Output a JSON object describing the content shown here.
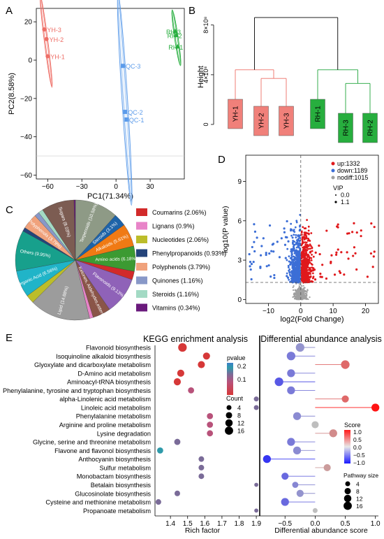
{
  "panel_labels": [
    "A",
    "B",
    "C",
    "D",
    "E"
  ],
  "chart_data": [
    {
      "type": "scatter",
      "panel": "A",
      "xlabel": "PC1(71.34%)",
      "ylabel": "PC2(8.58%)",
      "xlim": [
        -70,
        60
      ],
      "ylim": [
        -62,
        27
      ],
      "xticks": [
        -60,
        -30,
        0,
        30
      ],
      "xtick_labels": [
        "−60",
        "−30",
        "0",
        "30"
      ],
      "yticks": [
        20,
        0,
        -20,
        -40,
        -60
      ],
      "ytick_labels": [
        "20",
        "0",
        "−20",
        "−40",
        "−60"
      ],
      "groups": [
        {
          "color": "#EE6E66",
          "marker": "circle",
          "points": [
            {
              "label": "YH-3",
              "x": -63,
              "y": 16
            },
            {
              "label": "YH-2",
              "x": -61,
              "y": 11
            },
            {
              "label": "YH-1",
              "x": -60,
              "y": 2
            }
          ]
        },
        {
          "color": "#5B9BEA",
          "marker": "square",
          "points": [
            {
              "label": "QC-3",
              "x": 6,
              "y": -3
            },
            {
              "label": "QC-2",
              "x": 8,
              "y": -27
            },
            {
              "label": "QC-1",
              "x": 9,
              "y": -31
            }
          ]
        },
        {
          "color": "#27AE3E",
          "marker": "triangle",
          "points": [
            {
              "label": "RH-3",
              "x": 52,
              "y": 15
            },
            {
              "label": "RH-2",
              "x": 53,
              "y": 13
            },
            {
              "label": "RH-1",
              "x": 54,
              "y": 7
            }
          ]
        }
      ]
    },
    {
      "type": "dendrogram",
      "panel": "B",
      "ylabel": "Height",
      "ylim": [
        0,
        9
      ],
      "yticks": [
        0,
        4,
        8
      ],
      "ytick_labels": [
        "0",
        "4×10⁸",
        "8×10⁸"
      ],
      "leaves": [
        {
          "label": "YH-1",
          "color": "#EE6E66",
          "fill": "#F0807A"
        },
        {
          "label": "YH-2",
          "color": "#EE6E66",
          "fill": "#F0807A"
        },
        {
          "label": "YH-3",
          "color": "#EE6E66",
          "fill": "#F0807A"
        },
        {
          "label": "RH-1",
          "color": "#1EA33A",
          "fill": "#27AE3E"
        },
        {
          "label": "RH-3",
          "color": "#1EA33A",
          "fill": "#27AE3E"
        },
        {
          "label": "RH-2",
          "color": "#1EA33A",
          "fill": "#27AE3E"
        }
      ],
      "merge_heights": {
        "root": 8.6,
        "red_top": 4.4,
        "red_sub": 3.7,
        "green_top": 4.4,
        "green_sub": 3.3
      }
    },
    {
      "type": "pie",
      "panel": "C",
      "slices": [
        {
          "label": "Terpenoids (10.58%)",
          "value": 10.58,
          "color": "#8E9A86"
        },
        {
          "label": "Steroids (3.1%)",
          "value": 3.1,
          "color": "#1E63A8"
        },
        {
          "label": "Alkaloids (5.61%)",
          "value": 5.61,
          "color": "#F07A14"
        },
        {
          "label": "Amino acids (6.18%)",
          "value": 6.18,
          "color": "#3C9A32"
        },
        {
          "label": "Coumarins (2.06%)",
          "value": 2.06,
          "color": "#D22A2A"
        },
        {
          "label": "Flavonoids (9.13%)",
          "value": 9.13,
          "color": "#8F62B8"
        },
        {
          "label": "Ketones, Aldehydes,esters (4.4%)",
          "value": 4.4,
          "color": "#8A5548"
        },
        {
          "label": "Lignans (0.9%)",
          "value": 0.9,
          "color": "#E884C8"
        },
        {
          "label": "Lipid (14.88%)",
          "value": 14.88,
          "color": "#9C9C9C"
        },
        {
          "label": "Nucleotides (2.06%)",
          "value": 2.06,
          "color": "#BCBD2A"
        },
        {
          "label": "Organic Acid (6.56%)",
          "value": 6.56,
          "color": "#20B4C8"
        },
        {
          "label": "Others (9.95%)",
          "value": 9.95,
          "color": "#17A08C"
        },
        {
          "label": "Phenylpropanoids (0.93%)",
          "value": 0.93,
          "color": "#24447A"
        },
        {
          "label": "Polyphenols (3.79%)",
          "value": 3.79,
          "color": "#F0A27C"
        },
        {
          "label": "Quinones (1.16%)",
          "value": 1.16,
          "color": "#8898C8"
        },
        {
          "label": "Steroids (1.16%)",
          "value": 1.16,
          "color": "#A3DAC4"
        },
        {
          "label": "Sugars (8.03%)",
          "value": 8.03,
          "color": "#7C5C52"
        },
        {
          "label": "Vitamins (0.34%)",
          "value": 0.34,
          "color": "#6A1A7C"
        }
      ],
      "legend": [
        {
          "label": "Coumarins (2.06%)",
          "color": "#D22A2A"
        },
        {
          "label": "Lignans (0.9%)",
          "color": "#E884C8"
        },
        {
          "label": "Nucleotides (2.06%)",
          "color": "#BCBD2A"
        },
        {
          "label": "Phenylpropanoids (0.93%)",
          "color": "#24447A"
        },
        {
          "label": "Polyphenols (3.79%)",
          "color": "#F0A27C"
        },
        {
          "label": "Quinones (1.16%)",
          "color": "#8898C8"
        },
        {
          "label": "Steroids (1.16%)",
          "color": "#A3DAC4"
        },
        {
          "label": "Vitamins (0.34%)",
          "color": "#6A1A7C"
        }
      ],
      "legend_placement": "right"
    },
    {
      "type": "volcano",
      "panel": "D",
      "xlabel": "log2(Fold Change)",
      "ylabel": "-log10(P value)",
      "xlim": [
        -17,
        24
      ],
      "ylim": [
        -0.3,
        11
      ],
      "xticks": [
        -10,
        0,
        10,
        20
      ],
      "xtick_labels": [
        "−10",
        "0",
        "10",
        "20"
      ],
      "yticks": [
        0,
        3,
        6,
        9
      ],
      "ytick_labels": [
        "0",
        "3",
        "6",
        "9"
      ],
      "threshold_y": 1.3,
      "threshold_x": 0,
      "legend": [
        {
          "label": "up:1332",
          "color": "#E0191C",
          "count": 1332
        },
        {
          "label": "down:1189",
          "color": "#3C6ED6",
          "count": 1189
        },
        {
          "label": "nodiff:1015",
          "color": "#A0A0A0",
          "count": 1015
        }
      ],
      "vip_title": "VIP",
      "vip_labels": [
        "0.0",
        "1.1"
      ],
      "legend_placement": "top-right"
    },
    {
      "type": "scatter",
      "panel": "E-left",
      "title": "KEGG enrichment analysis",
      "xlabel": "Rich factor",
      "xlim": [
        1.31,
        1.92
      ],
      "xticks": [
        1.4,
        1.5,
        1.6,
        1.7,
        1.8,
        1.9
      ],
      "xtick_labels": [
        "1.4",
        "1.5",
        "1.6",
        "1.7",
        "1.8",
        "1.9"
      ],
      "pathways": [
        "Flavonoid biosynthesis",
        "Isoquinoline alkaloid biosynthesis",
        "Glyoxylate and dicarboxylate metabolism",
        "D-Amino acid metabolism",
        "Aminoacyl-tRNA biosynthesis",
        "Phenylalanine, tyrosine and tryptophan biosynthesis",
        "alpha-Linolenic acid metabolism",
        "Linoleic acid metabolism",
        "Phenylalanine metabolism",
        "Arginine and proline metabolism",
        "Lysine degradation",
        "Glycine, serine and threonine metabolism",
        "Flavone and flavonol biosynthesis",
        "Anthocyanin biosynthesis",
        "Sulfur metabolism",
        "Monobactam biosynthesis",
        "Betalain biosynthesis",
        "Glucosinolate biosynthesis",
        "Cysteine and methionine metabolism",
        "Propanoate metabolism"
      ],
      "rich_factor": [
        1.47,
        1.61,
        1.58,
        1.46,
        1.44,
        1.52,
        1.9,
        1.9,
        1.63,
        1.63,
        1.63,
        1.44,
        1.34,
        1.58,
        1.58,
        1.58,
        1.9,
        1.44,
        1.33,
        1.9
      ],
      "pvalue": [
        0.02,
        0.015,
        0.025,
        0.05,
        0.06,
        0.15,
        0.23,
        0.22,
        0.2,
        0.2,
        0.2,
        0.3,
        0.32,
        0.27,
        0.28,
        0.28,
        0.27,
        0.3,
        0.3,
        0.25
      ],
      "count": [
        10,
        6,
        6,
        6,
        6,
        4,
        2,
        2,
        4,
        4,
        4,
        4,
        4,
        3,
        3,
        3,
        1,
        3,
        3,
        1
      ],
      "legend_pvalue": {
        "title": "pvalue",
        "ticks": [
          "0.2",
          "0.1"
        ]
      },
      "legend_count": {
        "title": "Count",
        "values": [
          4,
          8,
          12,
          16
        ],
        "labels": [
          "4",
          "8",
          "12",
          "16"
        ]
      }
    },
    {
      "type": "lollipop",
      "panel": "E-right",
      "title": "Differential abundance analysis",
      "xlabel": "Differential abundance score",
      "xlim": [
        -0.92,
        1.05
      ],
      "xticks": [
        -0.5,
        0.0,
        0.5,
        1.0
      ],
      "xtick_labels": [
        "−0.5",
        "0.0",
        "0.5",
        "1.0"
      ],
      "score": [
        -0.25,
        -0.4,
        0.5,
        -0.4,
        -0.6,
        -0.4,
        0.5,
        1.0,
        -0.3,
        0.0,
        0.3,
        -0.4,
        -0.3,
        -0.8,
        0.2,
        -0.5,
        -0.33,
        -0.25,
        -0.5,
        0.0
      ],
      "size": [
        10,
        10,
        10,
        8,
        10,
        8,
        6,
        8,
        8,
        6,
        8,
        8,
        8,
        8,
        6,
        6,
        4,
        6,
        8,
        2
      ],
      "legend_score": {
        "title": "Score",
        "ticks": [
          "1.0",
          "0.5",
          "0.0",
          "−0.5",
          "−1.0"
        ]
      },
      "legend_size": {
        "title": "Pathway size",
        "values": [
          4,
          8,
          12,
          16
        ],
        "labels": [
          "4",
          "8",
          "12",
          "16"
        ]
      }
    }
  ]
}
